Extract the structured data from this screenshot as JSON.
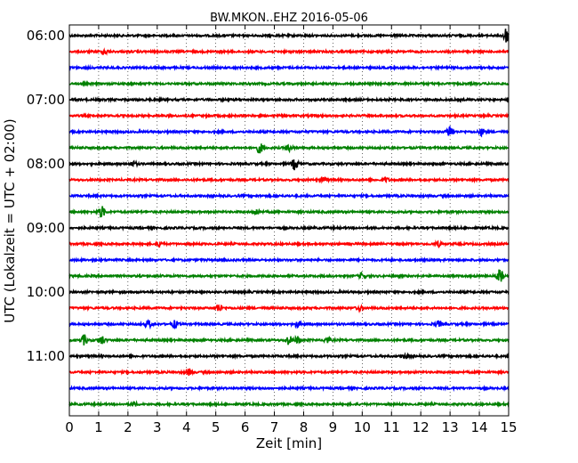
{
  "chart_data": {
    "type": "line",
    "title": "BW.MKON..EHZ 2016-05-06",
    "xlabel": "Zeit  [min]",
    "ylabel": "UTC (Lokalzeit = UTC + 02:00)",
    "xlim": [
      0,
      15
    ],
    "x_ticks": [
      "0",
      "1",
      "2",
      "3",
      "4",
      "5",
      "6",
      "7",
      "8",
      "9",
      "10",
      "11",
      "12",
      "13",
      "14",
      "15"
    ],
    "y_tick_labels": [
      "06:00",
      "07:00",
      "08:00",
      "09:00",
      "10:00",
      "11:00"
    ],
    "y_tick_rows": [
      0,
      4,
      8,
      12,
      16,
      20
    ],
    "grid": "vertical dotted",
    "trace_colors": [
      "#000000",
      "#ff0000",
      "#0000ff",
      "#008000"
    ],
    "trace_interval_minutes": 15,
    "traces": [
      {
        "start": "06:00",
        "events": [
          [
            14.9,
            1.0
          ]
        ]
      },
      {
        "start": "06:15",
        "events": [
          [
            1.2,
            0.4
          ]
        ]
      },
      {
        "start": "06:30",
        "events": []
      },
      {
        "start": "06:45",
        "events": []
      },
      {
        "start": "07:00",
        "events": []
      },
      {
        "start": "07:15",
        "events": []
      },
      {
        "start": "07:30",
        "events": [
          [
            13.0,
            0.8
          ],
          [
            14.1,
            0.5
          ]
        ]
      },
      {
        "start": "07:45",
        "events": [
          [
            6.5,
            0.7
          ],
          [
            7.5,
            0.4
          ]
        ]
      },
      {
        "start": "08:00",
        "events": [
          [
            7.7,
            0.8
          ],
          [
            2.2,
            0.3
          ]
        ]
      },
      {
        "start": "08:15",
        "events": [
          [
            8.7,
            0.4
          ],
          [
            10.8,
            0.3
          ]
        ]
      },
      {
        "start": "08:30",
        "events": []
      },
      {
        "start": "08:45",
        "events": [
          [
            1.1,
            0.8
          ],
          [
            6.4,
            0.4
          ]
        ]
      },
      {
        "start": "09:00",
        "events": []
      },
      {
        "start": "09:15",
        "events": [
          [
            3.1,
            0.4
          ],
          [
            12.6,
            0.3
          ]
        ]
      },
      {
        "start": "09:30",
        "events": []
      },
      {
        "start": "09:45",
        "events": [
          [
            14.7,
            1.0
          ],
          [
            10.0,
            0.4
          ]
        ]
      },
      {
        "start": "10:00",
        "events": []
      },
      {
        "start": "10:15",
        "events": [
          [
            5.1,
            0.5
          ],
          [
            9.9,
            0.3
          ]
        ]
      },
      {
        "start": "10:30",
        "events": [
          [
            2.7,
            0.5
          ],
          [
            3.6,
            0.5
          ],
          [
            7.8,
            0.4
          ],
          [
            12.6,
            0.4
          ]
        ]
      },
      {
        "start": "10:45",
        "events": [
          [
            0.5,
            0.7
          ],
          [
            1.1,
            0.6
          ],
          [
            7.5,
            0.6
          ],
          [
            7.8,
            0.5
          ],
          [
            8.8,
            0.4
          ]
        ]
      },
      {
        "start": "11:00",
        "events": [
          [
            11.5,
            0.3
          ]
        ]
      },
      {
        "start": "11:15",
        "events": [
          [
            4.1,
            0.4
          ]
        ]
      },
      {
        "start": "11:30",
        "events": []
      },
      {
        "start": "11:45",
        "events": [
          [
            2.2,
            0.3
          ]
        ]
      }
    ]
  }
}
